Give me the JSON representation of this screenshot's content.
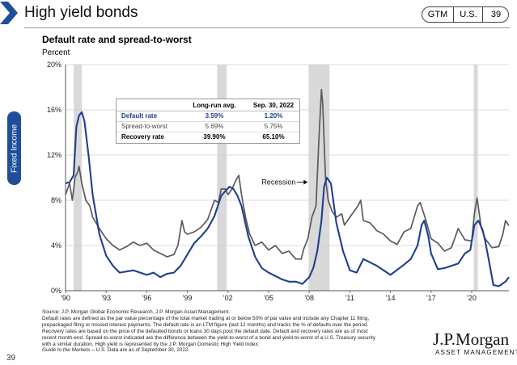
{
  "header": {
    "title": "High yield bonds",
    "tags": [
      "GTM",
      "U.S.",
      "39"
    ]
  },
  "side_tab": {
    "label": "Fixed Income"
  },
  "page_number": "39",
  "logo": {
    "name": "J.P.Morgan",
    "sub": "ASSET MANAGEMENT"
  },
  "stats_table": {
    "headers": [
      "",
      "Long-run avg.",
      "Sep. 30, 2022"
    ],
    "rows": [
      [
        "Default rate",
        "3.59%",
        "1.20%"
      ],
      [
        "Spread-to-worst",
        "5.69%",
        "5.75%"
      ],
      [
        "Recovery rate",
        "39.90%",
        "65.10%"
      ]
    ]
  },
  "footnote": {
    "source": "Source: J.P. Morgan Global Economic Research, J.P. Morgan Asset Management.",
    "body": "Default rates are defined as the par value percentage of the total market trading at or below 50% of par value and include any Chapter 11 filing, prepackaged filing or missed interest payments. The default rate is an LTM figure (last 12 months) and tracks the % of defaults over the period. Recovery rates are based on the price of the defaulted bonds or loans 30 days post the default date. Default and recovery rates are as of most recent month-end. Spread-to-worst indicated are the difference between the yield-to-worst of a bond and yield-to-worst of a U.S. Treasury security with a similar duration. High yield is represented by the J.P. Morgan Domestic High Yield Index.",
    "guide": "Guide to the Markets – U.S.",
    "date": " Data are as of September 30, 2022."
  },
  "colors": {
    "default_rate": "#1f3f8f",
    "spread": "#5a5a5a",
    "recession": "#d9d9d9",
    "accent": "#1f4e9b"
  },
  "chart_data": {
    "type": "line",
    "title": "Default rate and spread-to-worst",
    "ylabel": "Percent",
    "xlabel": "",
    "xlim": [
      1990,
      2022.75
    ],
    "ylim": [
      0,
      20
    ],
    "yticks": [
      0,
      4,
      8,
      12,
      16,
      20
    ],
    "ytick_labels": [
      "0%",
      "4%",
      "8%",
      "12%",
      "16%",
      "20%"
    ],
    "xticks": [
      1990,
      1993,
      1996,
      1999,
      2002,
      2005,
      2008,
      2011,
      2014,
      2017,
      2020
    ],
    "xtick_labels": [
      "'90",
      "'93",
      "'96",
      "'99",
      "'02",
      "'05",
      "'08",
      "'11",
      "'14",
      "'17",
      "'20"
    ],
    "recessions": [
      [
        1990.6,
        1991.2
      ],
      [
        2001.2,
        2001.9
      ],
      [
        2007.95,
        2009.5
      ],
      [
        2020.15,
        2020.45
      ]
    ],
    "annotation": {
      "text": "Recession",
      "x": 2007.95,
      "y": 9.6
    },
    "series": [
      {
        "name": "Spread-to-worst",
        "x": [
          1990.0,
          1990.3,
          1990.5,
          1990.7,
          1990.9,
          1991.0,
          1991.2,
          1991.5,
          1991.8,
          1992.0,
          1992.5,
          1993.0,
          1993.5,
          1994.0,
          1994.5,
          1995.0,
          1995.5,
          1996.0,
          1996.5,
          1997.0,
          1997.5,
          1998.0,
          1998.3,
          1998.6,
          1998.8,
          1999.0,
          1999.5,
          2000.0,
          2000.5,
          2001.0,
          2001.3,
          2001.5,
          2001.8,
          2002.0,
          2002.3,
          2002.6,
          2002.8,
          2003.0,
          2003.3,
          2003.6,
          2004.0,
          2004.5,
          2005.0,
          2005.5,
          2006.0,
          2006.5,
          2007.0,
          2007.4,
          2007.6,
          2007.9,
          2008.2,
          2008.5,
          2008.7,
          2008.9,
          2009.0,
          2009.2,
          2009.4,
          2009.7,
          2010.0,
          2010.4,
          2010.6,
          2011.0,
          2011.6,
          2011.8,
          2012.0,
          2012.5,
          2013.0,
          2013.5,
          2014.0,
          2014.5,
          2015.0,
          2015.5,
          2016.0,
          2016.2,
          2016.6,
          2017.0,
          2017.5,
          2018.0,
          2018.5,
          2019.0,
          2019.5,
          2020.0,
          2020.2,
          2020.4,
          2020.7,
          2021.0,
          2021.5,
          2022.0,
          2022.3,
          2022.5,
          2022.75
        ],
        "values": [
          8.5,
          9.5,
          8.0,
          10.0,
          10.5,
          11.0,
          9.5,
          8.0,
          7.5,
          6.5,
          5.5,
          4.6,
          4.0,
          3.6,
          3.9,
          4.3,
          4.0,
          4.2,
          3.6,
          3.3,
          3.0,
          3.2,
          4.0,
          6.2,
          5.2,
          5.0,
          5.2,
          5.6,
          6.3,
          8.0,
          7.8,
          9.0,
          9.0,
          8.5,
          9.0,
          9.8,
          10.2,
          8.5,
          6.5,
          5.0,
          4.0,
          4.3,
          3.6,
          4.0,
          3.3,
          3.5,
          2.8,
          2.8,
          3.7,
          4.6,
          6.5,
          7.5,
          13.0,
          17.8,
          16.5,
          10.0,
          8.0,
          7.0,
          6.5,
          6.8,
          5.8,
          6.5,
          7.5,
          8.0,
          6.2,
          6.0,
          5.3,
          5.0,
          4.4,
          4.1,
          5.2,
          5.5,
          7.5,
          7.8,
          6.3,
          4.6,
          4.2,
          3.5,
          3.8,
          5.5,
          4.5,
          4.4,
          6.8,
          8.2,
          5.6,
          4.6,
          3.8,
          3.9,
          5.0,
          6.2,
          5.75
        ]
      },
      {
        "name": "Default rate",
        "x": [
          1990.0,
          1990.3,
          1990.6,
          1990.8,
          1991.0,
          1991.2,
          1991.4,
          1991.7,
          1992.0,
          1992.5,
          1993.0,
          1993.5,
          1994.0,
          1995.0,
          1996.0,
          1996.5,
          1997.0,
          1997.5,
          1998.0,
          1998.5,
          1999.0,
          1999.5,
          2000.0,
          2000.5,
          2001.0,
          2001.5,
          2001.8,
          2002.1,
          2002.4,
          2002.7,
          2003.0,
          2003.5,
          2004.0,
          2004.5,
          2005.0,
          2006.0,
          2006.5,
          2007.0,
          2007.5,
          2008.0,
          2008.3,
          2008.6,
          2008.9,
          2009.1,
          2009.3,
          2009.6,
          2010.0,
          2010.5,
          2011.0,
          2011.5,
          2012.0,
          2013.0,
          2014.0,
          2015.0,
          2015.5,
          2016.0,
          2016.3,
          2016.5,
          2016.8,
          2017.0,
          2017.5,
          2018.0,
          2019.0,
          2019.5,
          2019.9,
          2020.2,
          2020.5,
          2020.8,
          2021.0,
          2021.3,
          2021.6,
          2022.0,
          2022.5,
          2022.75
        ],
        "values": [
          9.5,
          9.6,
          10.2,
          14.5,
          15.5,
          15.8,
          15.0,
          12.0,
          8.5,
          5.0,
          3.1,
          2.2,
          1.6,
          1.8,
          1.4,
          1.6,
          1.2,
          1.5,
          1.6,
          2.2,
          3.2,
          4.2,
          4.8,
          5.5,
          6.6,
          8.4,
          8.8,
          9.2,
          9.0,
          8.4,
          7.5,
          4.8,
          3.0,
          2.0,
          1.6,
          1.0,
          0.8,
          0.8,
          0.6,
          1.2,
          2.0,
          3.5,
          6.2,
          9.2,
          10.0,
          9.5,
          6.0,
          3.5,
          1.8,
          1.6,
          2.8,
          2.2,
          1.4,
          2.3,
          2.8,
          4.0,
          5.8,
          6.2,
          4.8,
          3.3,
          1.9,
          2.0,
          2.4,
          3.3,
          3.6,
          5.8,
          6.2,
          5.4,
          4.4,
          2.5,
          0.5,
          0.4,
          0.8,
          1.2
        ]
      }
    ]
  }
}
